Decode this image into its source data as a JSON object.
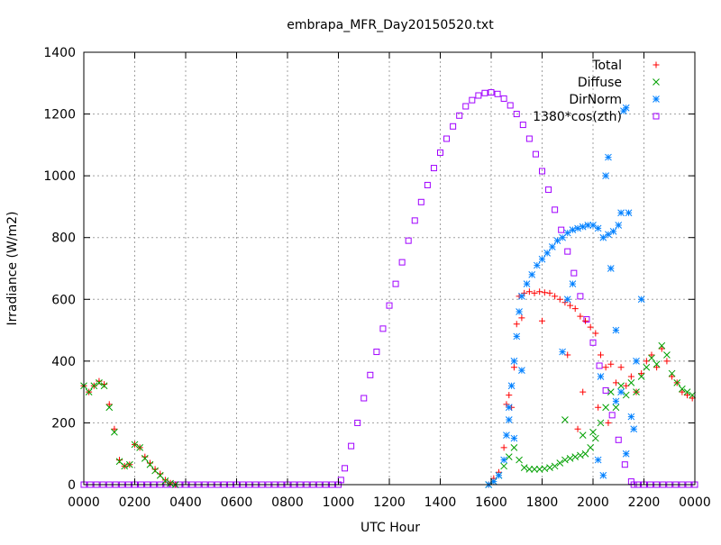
{
  "chart_data": {
    "type": "scatter",
    "title": "embrapa_MFR_Day20150520.txt",
    "xlabel": "UTC Hour",
    "ylabel": "Irradiance (W/m2)",
    "xlim": [
      0,
      24
    ],
    "ylim": [
      0,
      1400
    ],
    "grid": true,
    "legend_position": "top-right",
    "x_ticks": [
      {
        "value": 0,
        "label": "0000"
      },
      {
        "value": 2,
        "label": "0200"
      },
      {
        "value": 4,
        "label": "0400"
      },
      {
        "value": 6,
        "label": "0600"
      },
      {
        "value": 8,
        "label": "0800"
      },
      {
        "value": 10,
        "label": "1000"
      },
      {
        "value": 12,
        "label": "1200"
      },
      {
        "value": 14,
        "label": "1400"
      },
      {
        "value": 16,
        "label": "1600"
      },
      {
        "value": 18,
        "label": "1800"
      },
      {
        "value": 20,
        "label": "2000"
      },
      {
        "value": 22,
        "label": "2200"
      },
      {
        "value": 24,
        "label": "0000"
      }
    ],
    "y_ticks": [
      0,
      200,
      400,
      600,
      800,
      1000,
      1200,
      1400
    ],
    "series": [
      {
        "name": "Total",
        "marker": "plus",
        "color": "#ff0000",
        "points": [
          [
            0,
            320
          ],
          [
            0.2,
            300
          ],
          [
            0.4,
            320
          ],
          [
            0.6,
            335
          ],
          [
            0.8,
            325
          ],
          [
            1.0,
            260
          ],
          [
            1.2,
            180
          ],
          [
            1.4,
            80
          ],
          [
            1.6,
            60
          ],
          [
            1.8,
            65
          ],
          [
            2.0,
            130
          ],
          [
            2.2,
            120
          ],
          [
            2.4,
            90
          ],
          [
            2.6,
            70
          ],
          [
            2.8,
            50
          ],
          [
            3.0,
            35
          ],
          [
            3.2,
            15
          ],
          [
            3.4,
            5
          ],
          [
            3.6,
            0
          ],
          [
            15.9,
            0
          ],
          [
            16.1,
            20
          ],
          [
            16.3,
            40
          ],
          [
            16.5,
            120
          ],
          [
            16.6,
            260
          ],
          [
            16.7,
            290
          ],
          [
            16.8,
            250
          ],
          [
            16.9,
            380
          ],
          [
            17.0,
            520
          ],
          [
            17.1,
            610
          ],
          [
            17.3,
            620
          ],
          [
            17.5,
            625
          ],
          [
            17.7,
            620
          ],
          [
            17.9,
            625
          ],
          [
            18.1,
            622
          ],
          [
            18.3,
            620
          ],
          [
            18.5,
            610
          ],
          [
            18.7,
            600
          ],
          [
            18.9,
            590
          ],
          [
            19.1,
            580
          ],
          [
            19.3,
            570
          ],
          [
            19.5,
            545
          ],
          [
            19.7,
            530
          ],
          [
            19.9,
            510
          ],
          [
            20.1,
            490
          ],
          [
            20.3,
            420
          ],
          [
            20.5,
            380
          ],
          [
            20.7,
            390
          ],
          [
            20.9,
            330
          ],
          [
            21.1,
            380
          ],
          [
            21.3,
            320
          ],
          [
            21.5,
            350
          ],
          [
            21.7,
            300
          ],
          [
            21.9,
            360
          ],
          [
            22.1,
            400
          ],
          [
            22.3,
            420
          ],
          [
            22.5,
            380
          ],
          [
            22.7,
            440
          ],
          [
            22.9,
            400
          ],
          [
            23.1,
            350
          ],
          [
            23.3,
            330
          ],
          [
            23.5,
            300
          ],
          [
            23.7,
            290
          ],
          [
            23.9,
            280
          ],
          [
            18.0,
            530
          ],
          [
            19.0,
            420
          ],
          [
            19.6,
            300
          ],
          [
            20.2,
            250
          ],
          [
            20.6,
            200
          ],
          [
            19.4,
            180
          ],
          [
            17.2,
            540
          ]
        ]
      },
      {
        "name": "Diffuse",
        "marker": "cross",
        "color": "#00a000",
        "points": [
          [
            0,
            320
          ],
          [
            0.2,
            300
          ],
          [
            0.4,
            320
          ],
          [
            0.6,
            330
          ],
          [
            0.8,
            320
          ],
          [
            1.0,
            250
          ],
          [
            1.2,
            170
          ],
          [
            1.4,
            75
          ],
          [
            1.6,
            60
          ],
          [
            1.8,
            65
          ],
          [
            2.0,
            130
          ],
          [
            2.2,
            120
          ],
          [
            2.4,
            85
          ],
          [
            2.6,
            65
          ],
          [
            2.8,
            45
          ],
          [
            3.0,
            30
          ],
          [
            3.2,
            12
          ],
          [
            3.4,
            4
          ],
          [
            3.6,
            0
          ],
          [
            15.9,
            0
          ],
          [
            16.1,
            10
          ],
          [
            16.3,
            30
          ],
          [
            16.5,
            60
          ],
          [
            16.7,
            90
          ],
          [
            16.9,
            120
          ],
          [
            17.1,
            80
          ],
          [
            17.3,
            55
          ],
          [
            17.5,
            50
          ],
          [
            17.7,
            50
          ],
          [
            17.9,
            50
          ],
          [
            18.1,
            52
          ],
          [
            18.3,
            55
          ],
          [
            18.5,
            60
          ],
          [
            18.7,
            70
          ],
          [
            18.9,
            80
          ],
          [
            19.1,
            85
          ],
          [
            19.3,
            90
          ],
          [
            19.5,
            95
          ],
          [
            19.7,
            100
          ],
          [
            19.9,
            120
          ],
          [
            20.1,
            150
          ],
          [
            20.3,
            200
          ],
          [
            20.5,
            250
          ],
          [
            20.7,
            300
          ],
          [
            20.9,
            250
          ],
          [
            21.1,
            320
          ],
          [
            21.3,
            290
          ],
          [
            21.5,
            330
          ],
          [
            21.7,
            300
          ],
          [
            21.9,
            350
          ],
          [
            22.1,
            380
          ],
          [
            22.3,
            410
          ],
          [
            22.5,
            390
          ],
          [
            22.7,
            450
          ],
          [
            22.9,
            420
          ],
          [
            23.1,
            360
          ],
          [
            23.3,
            330
          ],
          [
            23.5,
            310
          ],
          [
            23.7,
            300
          ],
          [
            23.9,
            290
          ],
          [
            18.9,
            210
          ],
          [
            19.6,
            160
          ],
          [
            20.0,
            170
          ]
        ]
      },
      {
        "name": "DirNorm",
        "marker": "star",
        "color": "#0080ff",
        "points": [
          [
            15.9,
            0
          ],
          [
            16.1,
            10
          ],
          [
            16.3,
            30
          ],
          [
            16.5,
            80
          ],
          [
            16.6,
            160
          ],
          [
            16.7,
            250
          ],
          [
            16.8,
            320
          ],
          [
            16.9,
            400
          ],
          [
            17.0,
            480
          ],
          [
            17.1,
            560
          ],
          [
            17.2,
            610
          ],
          [
            17.4,
            650
          ],
          [
            17.6,
            680
          ],
          [
            17.8,
            710
          ],
          [
            18.0,
            730
          ],
          [
            18.2,
            750
          ],
          [
            18.4,
            770
          ],
          [
            18.6,
            790
          ],
          [
            18.8,
            800
          ],
          [
            19.0,
            815
          ],
          [
            19.2,
            825
          ],
          [
            19.4,
            830
          ],
          [
            19.6,
            835
          ],
          [
            19.8,
            840
          ],
          [
            20.0,
            840
          ],
          [
            20.2,
            830
          ],
          [
            20.4,
            800
          ],
          [
            20.6,
            810
          ],
          [
            20.8,
            820
          ],
          [
            21.0,
            840
          ],
          [
            21.1,
            880
          ],
          [
            20.5,
            1000
          ],
          [
            20.6,
            1060
          ],
          [
            20.7,
            700
          ],
          [
            20.9,
            500
          ],
          [
            21.1,
            300
          ],
          [
            21.3,
            100
          ],
          [
            21.5,
            220
          ],
          [
            21.7,
            400
          ],
          [
            21.9,
            600
          ],
          [
            21.2,
            1210
          ],
          [
            21.3,
            1220
          ],
          [
            21.4,
            880
          ],
          [
            20.3,
            350
          ],
          [
            20.2,
            80
          ],
          [
            20.4,
            30
          ],
          [
            19.2,
            650
          ],
          [
            19.0,
            600
          ],
          [
            18.8,
            430
          ],
          [
            16.7,
            210
          ],
          [
            17.2,
            370
          ],
          [
            20.9,
            270
          ],
          [
            21.6,
            180
          ],
          [
            16.9,
            150
          ]
        ]
      },
      {
        "name": "1380*cos(zth)",
        "marker": "square",
        "color": "#a000ff",
        "points": [
          [
            0,
            0
          ],
          [
            0.25,
            0
          ],
          [
            0.5,
            0
          ],
          [
            0.75,
            0
          ],
          [
            1,
            0
          ],
          [
            1.25,
            0
          ],
          [
            1.5,
            0
          ],
          [
            1.75,
            0
          ],
          [
            2,
            0
          ],
          [
            2.25,
            0
          ],
          [
            2.5,
            0
          ],
          [
            2.75,
            0
          ],
          [
            3,
            0
          ],
          [
            3.25,
            0
          ],
          [
            3.5,
            0
          ],
          [
            3.75,
            0
          ],
          [
            4,
            0
          ],
          [
            4.25,
            0
          ],
          [
            4.5,
            0
          ],
          [
            4.75,
            0
          ],
          [
            5,
            0
          ],
          [
            5.25,
            0
          ],
          [
            5.5,
            0
          ],
          [
            5.75,
            0
          ],
          [
            6,
            0
          ],
          [
            6.25,
            0
          ],
          [
            6.5,
            0
          ],
          [
            6.75,
            0
          ],
          [
            7,
            0
          ],
          [
            7.25,
            0
          ],
          [
            7.5,
            0
          ],
          [
            7.75,
            0
          ],
          [
            8,
            0
          ],
          [
            8.25,
            0
          ],
          [
            8.5,
            0
          ],
          [
            8.75,
            0
          ],
          [
            9,
            0
          ],
          [
            9.25,
            0
          ],
          [
            9.5,
            0
          ],
          [
            9.75,
            0
          ],
          [
            10.0,
            0
          ],
          [
            10.1,
            15
          ],
          [
            10.25,
            53
          ],
          [
            10.5,
            125
          ],
          [
            10.75,
            200
          ],
          [
            11.0,
            280
          ],
          [
            11.25,
            355
          ],
          [
            11.5,
            430
          ],
          [
            11.75,
            505
          ],
          [
            12.0,
            580
          ],
          [
            12.25,
            650
          ],
          [
            12.5,
            720
          ],
          [
            12.75,
            790
          ],
          [
            13.0,
            855
          ],
          [
            13.25,
            915
          ],
          [
            13.5,
            970
          ],
          [
            13.75,
            1025
          ],
          [
            14.0,
            1075
          ],
          [
            14.25,
            1120
          ],
          [
            14.5,
            1160
          ],
          [
            14.75,
            1195
          ],
          [
            15.0,
            1225
          ],
          [
            15.25,
            1245
          ],
          [
            15.5,
            1260
          ],
          [
            15.75,
            1268
          ],
          [
            16.0,
            1270
          ],
          [
            16.25,
            1265
          ],
          [
            16.5,
            1250
          ],
          [
            16.75,
            1228
          ],
          [
            17.0,
            1200
          ],
          [
            17.25,
            1165
          ],
          [
            17.5,
            1120
          ],
          [
            17.75,
            1070
          ],
          [
            18.0,
            1015
          ],
          [
            18.25,
            955
          ],
          [
            18.5,
            890
          ],
          [
            18.75,
            825
          ],
          [
            19.0,
            755
          ],
          [
            19.25,
            685
          ],
          [
            19.5,
            610
          ],
          [
            19.75,
            535
          ],
          [
            20.0,
            460
          ],
          [
            20.25,
            385
          ],
          [
            20.5,
            305
          ],
          [
            20.75,
            225
          ],
          [
            21.0,
            145
          ],
          [
            21.25,
            65
          ],
          [
            21.5,
            10
          ],
          [
            21.6,
            0
          ],
          [
            21.75,
            0
          ],
          [
            22,
            0
          ],
          [
            22.25,
            0
          ],
          [
            22.5,
            0
          ],
          [
            22.75,
            0
          ],
          [
            23,
            0
          ],
          [
            23.25,
            0
          ],
          [
            23.5,
            0
          ],
          [
            23.75,
            0
          ],
          [
            24,
            0
          ]
        ]
      }
    ]
  }
}
